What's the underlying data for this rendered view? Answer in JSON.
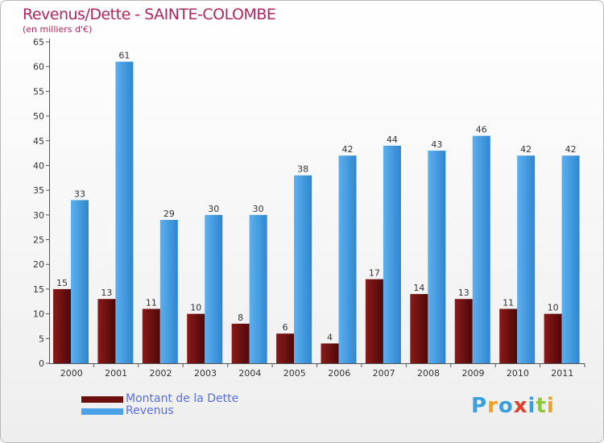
{
  "chart_data": {
    "type": "bar",
    "title": "Revenus/Dette - SAINTE-COLOMBE",
    "subtitle": "(en milliers d'€)",
    "categories": [
      "2000",
      "2001",
      "2002",
      "2003",
      "2004",
      "2005",
      "2006",
      "2007",
      "2008",
      "2009",
      "2010",
      "2011"
    ],
    "series": [
      {
        "name": "Montant de la Dette",
        "color": "#6b0f0f",
        "values": [
          15,
          13,
          11,
          10,
          8,
          6,
          4,
          17,
          14,
          13,
          11,
          10
        ]
      },
      {
        "name": "Revenus",
        "color": "#4aa3e8",
        "values": [
          33,
          61,
          29,
          30,
          30,
          38,
          42,
          44,
          43,
          46,
          42,
          42
        ]
      }
    ],
    "ylim": [
      0,
      65
    ],
    "yticks": [
      0,
      5,
      10,
      15,
      20,
      25,
      30,
      35,
      40,
      45,
      50,
      55,
      60,
      65
    ],
    "grid": false,
    "legend_position": "bottom-left"
  },
  "logo": {
    "text": "Proxiti",
    "letters": [
      {
        "ch": "P",
        "color": "#3aa0dd"
      },
      {
        "ch": "r",
        "color": "#f2a21c"
      },
      {
        "ch": "o",
        "color": "#3aa0dd"
      },
      {
        "ch": "x",
        "color": "#e0402a"
      },
      {
        "ch": "i",
        "color": "#3aa0dd"
      },
      {
        "ch": "t",
        "color": "#8cc63f"
      },
      {
        "ch": "i",
        "color": "#f2a21c"
      }
    ]
  }
}
